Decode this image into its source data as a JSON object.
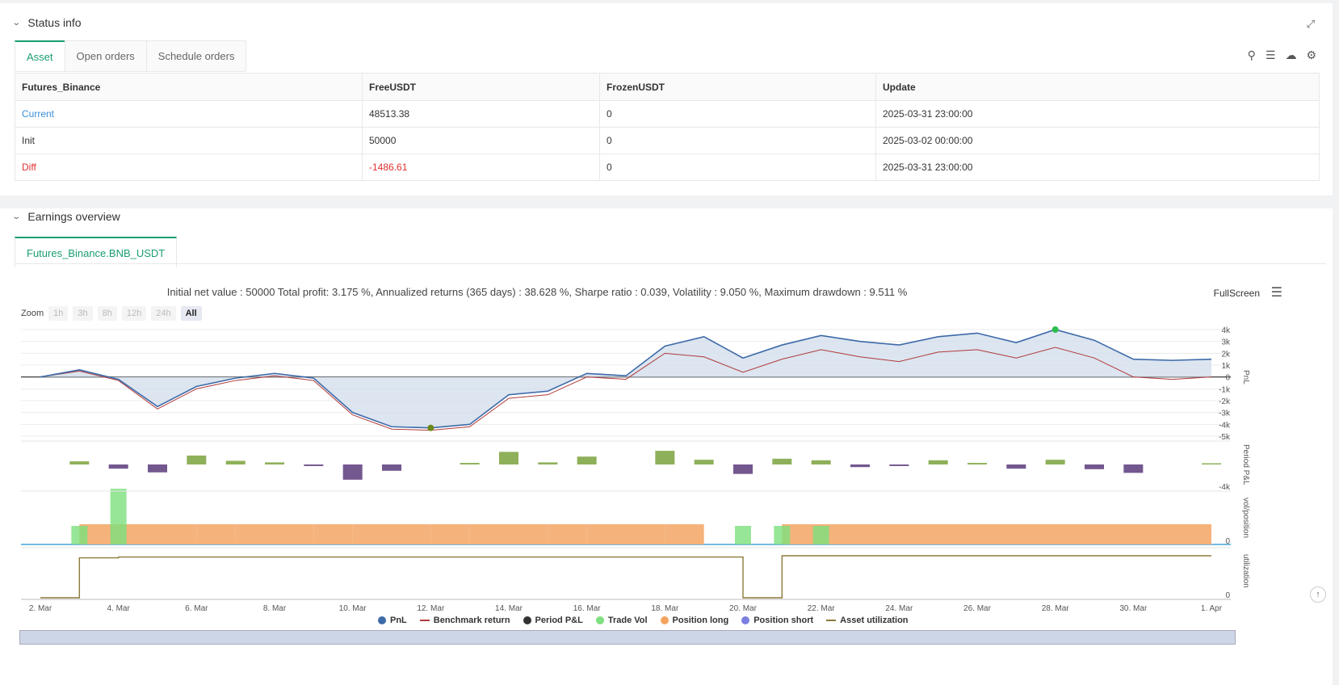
{
  "status": {
    "title": "Status info",
    "tabs": [
      "Asset",
      "Open orders",
      "Schedule orders"
    ],
    "columns": [
      "Futures_Binance",
      "FreeUSDT",
      "FrozenUSDT",
      "Update"
    ],
    "rows": [
      {
        "label": "Current",
        "free": "48513.38",
        "frozen": "0",
        "update": "2025-03-31 23:00:00",
        "color": "#3a8fd9"
      },
      {
        "label": "Init",
        "free": "50000",
        "frozen": "0",
        "update": "2025-03-02 00:00:00",
        "color": "#333333"
      },
      {
        "label": "Diff",
        "free": "-1486.61",
        "frozen": "0",
        "update": "2025-03-31 23:00:00",
        "color": "#e0302f"
      }
    ]
  },
  "earnings": {
    "title": "Earnings overview",
    "tab": "Futures_Binance.BNB_USDT",
    "stats": "Initial net value : 50000 Total profit: 3.175 %, Annualized returns (365 days) : 38.628 %, Sharpe ratio : 0.039, Volatility : 9.050 %, Maximum drawdown : 9.511 %",
    "fullscreen": "FullScreen",
    "zoom_label": "Zoom",
    "zoom_buttons": [
      "1h",
      "3h",
      "8h",
      "12h",
      "24h",
      "All"
    ]
  },
  "chart_data": {
    "type": "line",
    "x": [
      "2. Mar",
      "3. Mar",
      "4. Mar",
      "5. Mar",
      "6. Mar",
      "7. Mar",
      "8. Mar",
      "9. Mar",
      "10. Mar",
      "11. Mar",
      "12. Mar",
      "13. Mar",
      "14. Mar",
      "15. Mar",
      "16. Mar",
      "17. Mar",
      "18. Mar",
      "19. Mar",
      "20. Mar",
      "21. Mar",
      "22. Mar",
      "23. Mar",
      "24. Mar",
      "25. Mar",
      "26. Mar",
      "27. Mar",
      "28. Mar",
      "29. Mar",
      "30. Mar",
      "31. Mar",
      "1. Apr"
    ],
    "x_ticks": [
      "2. Mar",
      "4. Mar",
      "6. Mar",
      "8. Mar",
      "10. Mar",
      "12. Mar",
      "14. Mar",
      "16. Mar",
      "18. Mar",
      "20. Mar",
      "22. Mar",
      "24. Mar",
      "26. Mar",
      "28. Mar",
      "30. Mar",
      "1. Apr"
    ],
    "pnl_ticks": [
      "4k",
      "3k",
      "2k",
      "1k",
      "0",
      "-1k",
      "-2k",
      "-3k",
      "-4k",
      "-5k"
    ],
    "pnl_ylim": [
      -5000,
      4000
    ],
    "series": [
      {
        "name": "PnL",
        "values": [
          0,
          600,
          -200,
          -2500,
          -800,
          -100,
          300,
          -100,
          -3000,
          -4200,
          -4300,
          -4000,
          -1500,
          -1200,
          300,
          100,
          2600,
          3400,
          1600,
          2700,
          3500,
          3000,
          2700,
          3400,
          3700,
          2900,
          4000,
          3100,
          1500,
          1400,
          1500
        ]
      },
      {
        "name": "Benchmark return",
        "values": [
          0,
          500,
          -300,
          -2700,
          -1000,
          -300,
          100,
          -300,
          -3200,
          -4400,
          -4500,
          -4200,
          -1800,
          -1500,
          0,
          -200,
          2000,
          1700,
          400,
          1500,
          2300,
          1700,
          1300,
          2100,
          2300,
          1600,
          2500,
          1600,
          0,
          -200,
          0
        ]
      },
      {
        "name": "Period P&L",
        "values": [
          0,
          600,
          -800,
          -1500,
          1700,
          700,
          400,
          -300,
          -2900,
          -1200,
          0,
          300,
          2400,
          400,
          1500,
          0,
          2600,
          900,
          -1800,
          1100,
          800,
          -500,
          -300,
          800,
          300,
          -800,
          900,
          -900,
          -1600,
          0,
          200
        ]
      },
      {
        "name": "Trade Vol",
        "values": [
          0,
          1,
          3,
          0,
          0,
          0,
          0,
          0,
          0,
          0,
          0,
          0,
          0,
          0,
          0,
          0,
          0,
          0,
          1,
          1,
          1,
          0,
          0,
          0,
          0,
          0,
          0,
          0,
          0,
          0,
          0
        ]
      },
      {
        "name": "Position long",
        "values": [
          0,
          1,
          1,
          1,
          1,
          1,
          1,
          1,
          1,
          1,
          1,
          1,
          1,
          1,
          1,
          1,
          1,
          1,
          0,
          1,
          1,
          1,
          1,
          1,
          1,
          1,
          1,
          1,
          1,
          1,
          1
        ]
      },
      {
        "name": "Position short",
        "values": [
          0,
          0,
          0,
          0,
          0,
          0,
          0,
          0,
          0,
          0,
          0,
          0,
          0,
          0,
          0,
          0,
          0,
          0,
          0,
          0,
          0,
          0,
          0,
          0,
          0,
          0,
          0,
          0,
          0,
          0,
          0
        ]
      },
      {
        "name": "Asset utilization",
        "values": [
          0,
          0.95,
          0.97,
          0.97,
          0.97,
          0.97,
          0.97,
          0.97,
          0.97,
          0.97,
          0.97,
          0.97,
          0.97,
          0.97,
          0.97,
          0.97,
          0.97,
          0.97,
          0,
          1,
          1,
          1,
          1,
          1,
          1,
          1,
          1,
          1,
          1,
          1,
          1
        ]
      }
    ],
    "panel_labels": [
      "PnL",
      "Period P&L",
      "vol/position",
      "utilization"
    ],
    "period_tick": "-4k",
    "zero_tick": "0",
    "legend": [
      {
        "name": "PnL",
        "color": "#3d6aa8",
        "shape": "dot"
      },
      {
        "name": "Benchmark return",
        "color": "#b03a3a",
        "shape": "dash"
      },
      {
        "name": "Period P&L",
        "color": "#333333",
        "shape": "dot"
      },
      {
        "name": "Trade Vol",
        "color": "#7de07d",
        "shape": "dot"
      },
      {
        "name": "Position long",
        "color": "#f4a460",
        "shape": "dot"
      },
      {
        "name": "Position short",
        "color": "#7b7fe0",
        "shape": "dot"
      },
      {
        "name": "Asset utilization",
        "color": "#8a7a3a",
        "shape": "dash"
      }
    ]
  }
}
